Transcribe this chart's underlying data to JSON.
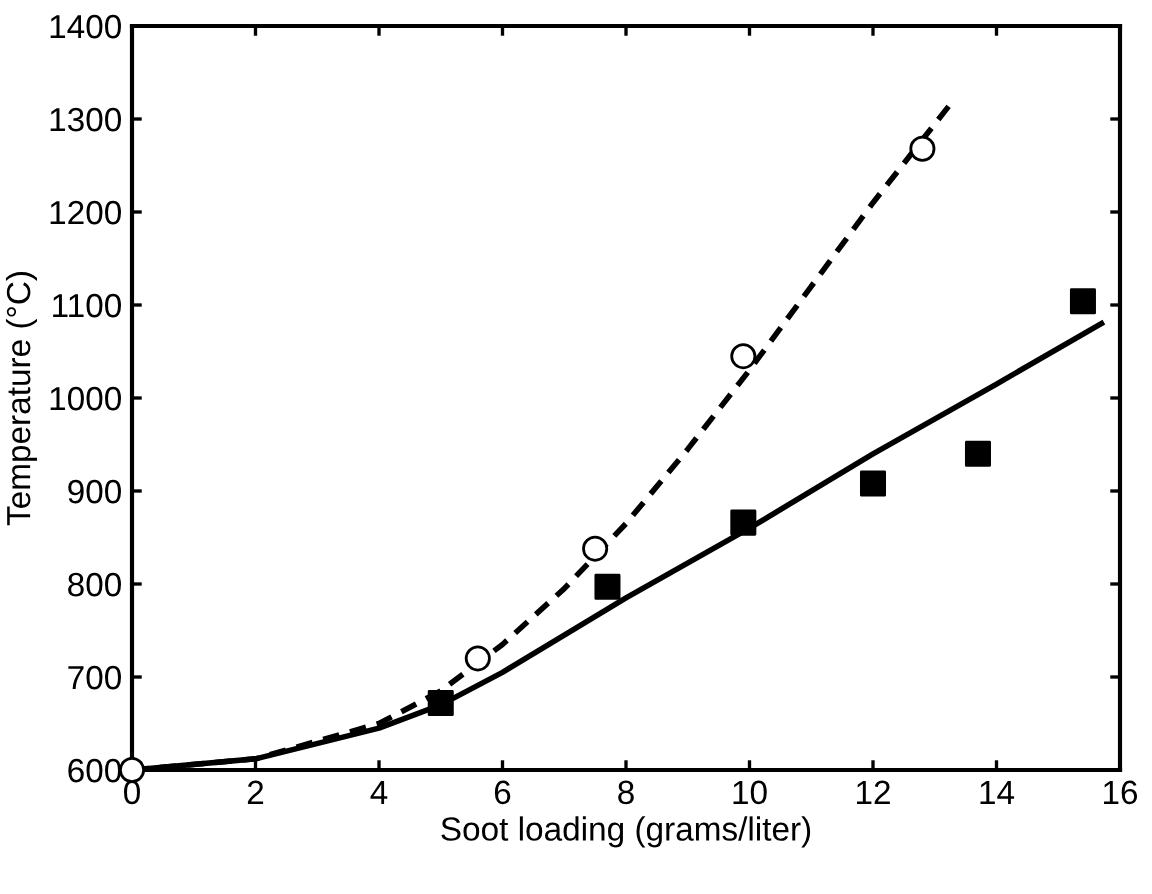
{
  "chart_data": {
    "type": "scatter",
    "xlabel": "Soot loading (grams/liter)",
    "ylabel": "Temperature (°C)",
    "xlim": [
      0,
      16
    ],
    "ylim": [
      600,
      1400
    ],
    "xticks": [
      0,
      2,
      4,
      6,
      8,
      10,
      12,
      14,
      16
    ],
    "yticks": [
      600,
      700,
      800,
      900,
      1000,
      1100,
      1200,
      1300,
      1400
    ],
    "grid": false,
    "series": [
      {
        "marker": "circle",
        "color": "#ffffff",
        "x": [
          0,
          5.6,
          7.5,
          9.9,
          12.8
        ],
        "values": [
          600,
          720,
          838,
          1045,
          1268
        ]
      },
      {
        "marker": "square",
        "color": "#000000",
        "x": [
          5.0,
          7.7,
          9.9,
          12.0,
          13.7,
          15.4
        ],
        "values": [
          672,
          797,
          866,
          908,
          940,
          1104
        ]
      },
      {
        "type": "line",
        "line_style": "dashed",
        "marker": "none",
        "color": "#000000",
        "x": [
          0,
          2,
          4,
          5,
          6,
          7,
          8,
          9,
          10,
          11,
          12,
          13.3
        ],
        "values": [
          600,
          612,
          650,
          685,
          735,
          795,
          865,
          945,
          1030,
          1120,
          1210,
          1320
        ]
      },
      {
        "type": "line",
        "line_style": "solid",
        "marker": "none",
        "color": "#000000",
        "x": [
          0,
          2,
          4,
          5,
          6,
          7,
          8,
          10,
          12,
          14,
          15.7
        ],
        "values": [
          600,
          612,
          645,
          670,
          705,
          745,
          785,
          860,
          940,
          1015,
          1080
        ]
      }
    ]
  }
}
